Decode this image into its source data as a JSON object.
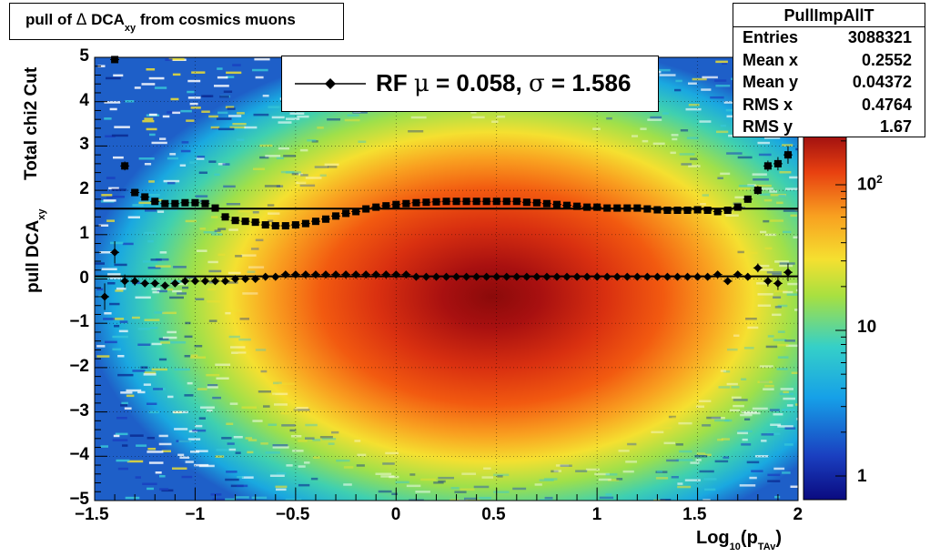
{
  "title": {
    "prefix": "pull of ",
    "delta": "Δ",
    "main": " DCA",
    "sub": "xy",
    "suffix": "  from cosmics muons"
  },
  "stats": {
    "name": "PullImpAllT",
    "rows": [
      {
        "label": "Entries",
        "value": "3088321"
      },
      {
        "label": "Mean x",
        "value": "0.2552"
      },
      {
        "label": "Mean y",
        "value": "0.04372"
      },
      {
        "label": "RMS x",
        "value": "0.4764"
      },
      {
        "label": "RMS y",
        "value": "1.67"
      }
    ]
  },
  "legend": {
    "prefix": "RF ",
    "mu_sym": "μ",
    "mu_text": " =  0.058, ",
    "sigma_sym": "σ",
    "sigma_text": " =   1.586"
  },
  "axes": {
    "ylabel_outer": "Total chi2 Cut",
    "ylabel_main": "pull DCA",
    "ylabel_sub": "xy",
    "xlabel_main": "Log",
    "xlabel_sub1": "10",
    "xlabel_mid": "(p",
    "xlabel_sub2": "TAv",
    "xlabel_end": ")"
  },
  "palette_labels": [
    {
      "text": "1"
    },
    {
      "text": "10"
    },
    {
      "text": "10",
      "sup": "2"
    }
  ],
  "chart_data": {
    "type": "heatmap",
    "title": "pull of Δ DCAxy  from cosmics muons",
    "xlabel": "Log10(pTAv)",
    "ylabel": "pull DCAxy",
    "xlim": [
      -1.5,
      2.0
    ],
    "ylim": [
      -5,
      5
    ],
    "x_ticks": [
      "−1.5",
      "−1",
      "−0.5",
      "0",
      "0.5",
      "1",
      "1.5",
      "2"
    ],
    "y_ticks": [
      "−5",
      "−4",
      "−3",
      "−2",
      "−1",
      "0",
      "1",
      "2",
      "3",
      "4",
      "5"
    ],
    "z_scale": "log",
    "z_ticks": [
      "1",
      "10",
      "10^2"
    ],
    "grid": true,
    "density_center": {
      "x": 0.45,
      "y": -0.2
    },
    "fit_lines": [
      {
        "name": "mean",
        "y": 0.058
      },
      {
        "name": "sigma",
        "y": 1.586
      }
    ],
    "series": [
      {
        "name": "mean",
        "marker": "diamond",
        "x": [
          -1.45,
          -1.4,
          -1.35,
          -1.3,
          -1.25,
          -1.2,
          -1.15,
          -1.1,
          -1.05,
          -1.0,
          -0.95,
          -0.9,
          -0.85,
          -0.8,
          -0.75,
          -0.7,
          -0.65,
          -0.6,
          -0.55,
          -0.5,
          -0.45,
          -0.4,
          -0.35,
          -0.3,
          -0.25,
          -0.2,
          -0.15,
          -0.1,
          -0.05,
          0.0,
          0.05,
          0.1,
          0.15,
          0.2,
          0.25,
          0.3,
          0.35,
          0.4,
          0.45,
          0.5,
          0.55,
          0.6,
          0.65,
          0.7,
          0.75,
          0.8,
          0.85,
          0.9,
          0.95,
          1.0,
          1.05,
          1.1,
          1.15,
          1.2,
          1.25,
          1.3,
          1.35,
          1.4,
          1.45,
          1.5,
          1.55,
          1.6,
          1.65,
          1.7,
          1.75,
          1.8,
          1.85,
          1.9,
          1.95
        ],
        "y": [
          -0.4,
          0.6,
          -0.05,
          -0.05,
          -0.1,
          -0.1,
          -0.15,
          -0.1,
          -0.05,
          -0.05,
          -0.05,
          -0.05,
          -0.05,
          0.0,
          0.0,
          0.0,
          0.05,
          0.05,
          0.1,
          0.1,
          0.1,
          0.1,
          0.1,
          0.1,
          0.1,
          0.1,
          0.1,
          0.1,
          0.1,
          0.1,
          0.1,
          0.05,
          0.05,
          0.05,
          0.05,
          0.05,
          0.05,
          0.05,
          0.05,
          0.05,
          0.05,
          0.05,
          0.05,
          0.05,
          0.05,
          0.05,
          0.05,
          0.05,
          0.05,
          0.05,
          0.05,
          0.05,
          0.05,
          0.05,
          0.05,
          0.05,
          0.05,
          0.05,
          0.05,
          0.05,
          0.05,
          0.1,
          -0.05,
          0.1,
          0.05,
          0.25,
          -0.05,
          -0.1,
          0.15
        ],
        "err": [
          0.3,
          0.25,
          0.15,
          0.1,
          0.08,
          0.06,
          0.05,
          0.04,
          0.03,
          0.03,
          0.02,
          0.02,
          0.02,
          0.02,
          0.02,
          0.02,
          0.02,
          0.02,
          0.02,
          0.02,
          0.02,
          0.02,
          0.02,
          0.02,
          0.02,
          0.02,
          0.02,
          0.02,
          0.02,
          0.02,
          0.02,
          0.02,
          0.02,
          0.02,
          0.02,
          0.02,
          0.02,
          0.02,
          0.02,
          0.02,
          0.02,
          0.02,
          0.02,
          0.02,
          0.02,
          0.02,
          0.02,
          0.02,
          0.02,
          0.02,
          0.02,
          0.02,
          0.02,
          0.02,
          0.02,
          0.02,
          0.02,
          0.02,
          0.02,
          0.03,
          0.03,
          0.04,
          0.05,
          0.06,
          0.08,
          0.1,
          0.12,
          0.15,
          0.2
        ]
      },
      {
        "name": "RMS",
        "marker": "square",
        "x": [
          -1.45,
          -1.4,
          -1.35,
          -1.3,
          -1.25,
          -1.2,
          -1.15,
          -1.1,
          -1.05,
          -1.0,
          -0.95,
          -0.9,
          -0.85,
          -0.8,
          -0.75,
          -0.7,
          -0.65,
          -0.6,
          -0.55,
          -0.5,
          -0.45,
          -0.4,
          -0.35,
          -0.3,
          -0.25,
          -0.2,
          -0.15,
          -0.1,
          -0.05,
          0.0,
          0.05,
          0.1,
          0.15,
          0.2,
          0.25,
          0.3,
          0.35,
          0.4,
          0.45,
          0.5,
          0.55,
          0.6,
          0.65,
          0.7,
          0.75,
          0.8,
          0.85,
          0.9,
          0.95,
          1.0,
          1.05,
          1.1,
          1.15,
          1.2,
          1.25,
          1.3,
          1.35,
          1.4,
          1.45,
          1.5,
          1.55,
          1.6,
          1.65,
          1.7,
          1.75,
          1.8,
          1.85,
          1.9,
          1.95
        ],
        "y": [
          null,
          4.95,
          2.55,
          1.95,
          1.85,
          1.75,
          1.7,
          1.7,
          1.72,
          1.72,
          1.7,
          1.6,
          1.4,
          1.32,
          1.3,
          1.28,
          1.22,
          1.2,
          1.2,
          1.22,
          1.25,
          1.3,
          1.35,
          1.42,
          1.48,
          1.52,
          1.58,
          1.62,
          1.65,
          1.68,
          1.7,
          1.72,
          1.73,
          1.74,
          1.75,
          1.75,
          1.75,
          1.75,
          1.75,
          1.75,
          1.75,
          1.75,
          1.73,
          1.72,
          1.7,
          1.68,
          1.66,
          1.64,
          1.62,
          1.62,
          1.6,
          1.6,
          1.6,
          1.6,
          1.58,
          1.56,
          1.55,
          1.55,
          1.55,
          1.56,
          1.55,
          1.52,
          1.55,
          1.62,
          1.8,
          2.0,
          2.55,
          2.6,
          2.8
        ],
        "err": [
          0,
          0,
          0.1,
          0.06,
          0.05,
          0.04,
          0.03,
          0.03,
          0.02,
          0.02,
          0.02,
          0.02,
          0.02,
          0.02,
          0.02,
          0.02,
          0.02,
          0.02,
          0.02,
          0.02,
          0.02,
          0.02,
          0.02,
          0.02,
          0.02,
          0.02,
          0.02,
          0.02,
          0.02,
          0.02,
          0.02,
          0.02,
          0.02,
          0.02,
          0.02,
          0.02,
          0.02,
          0.02,
          0.02,
          0.02,
          0.02,
          0.02,
          0.02,
          0.02,
          0.02,
          0.02,
          0.02,
          0.02,
          0.02,
          0.02,
          0.02,
          0.02,
          0.02,
          0.02,
          0.02,
          0.02,
          0.02,
          0.02,
          0.02,
          0.03,
          0.03,
          0.04,
          0.05,
          0.06,
          0.08,
          0.1,
          0.12,
          0.15,
          0.2
        ]
      }
    ]
  }
}
